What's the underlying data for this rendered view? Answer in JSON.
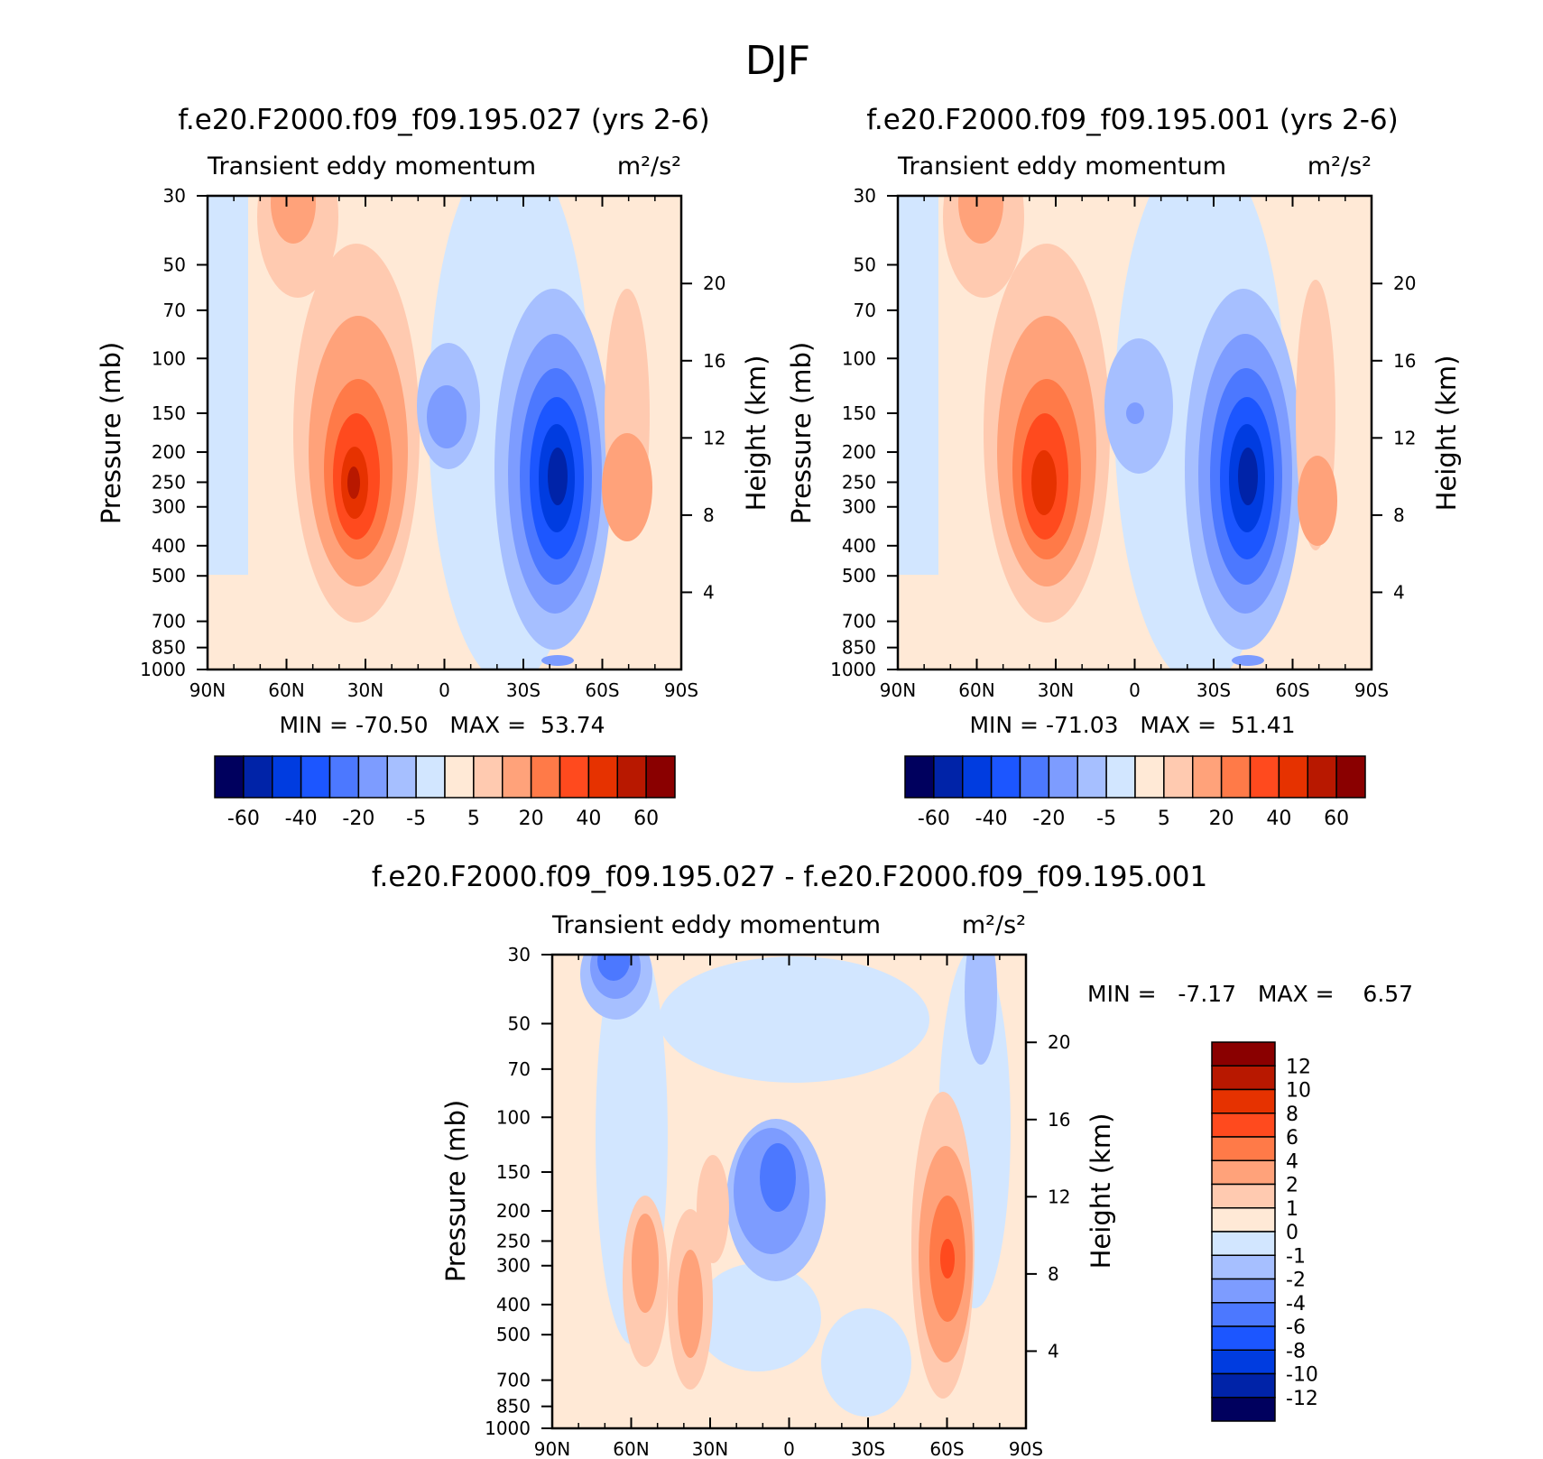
{
  "figure": {
    "title": "DJF"
  },
  "panels": [
    {
      "id": "p1",
      "title": "f.e20.F2000.f09_f09.195.027 (yrs 2-6)",
      "subtitle_left": "Transient eddy momentum",
      "units": "m²/s²",
      "ylabel_left": "Pressure (mb)",
      "ylabel_right": "Height (km)",
      "stats": {
        "min_label": "MIN =",
        "min": "-70.50",
        "max_label": "MAX =",
        "max": "53.74"
      }
    },
    {
      "id": "p2",
      "title": "f.e20.F2000.f09_f09.195.001 (yrs 2-6)",
      "subtitle_left": "Transient eddy momentum",
      "units": "m²/s²",
      "ylabel_left": "Pressure (mb)",
      "ylabel_right": "Height (km)",
      "stats": {
        "min_label": "MIN =",
        "min": "-71.03",
        "max_label": "MAX =",
        "max": "51.41"
      }
    },
    {
      "id": "p3",
      "title": "f.e20.F2000.f09_f09.195.027 - f.e20.F2000.f09_f09.195.001",
      "subtitle_left": "Transient eddy momentum",
      "units": "m²/s²",
      "ylabel_left": "Pressure (mb)",
      "ylabel_right": "Height (km)",
      "stats": {
        "min_label": "MIN =",
        "min": "-7.17",
        "max_label": "MAX =",
        "max": "6.57"
      }
    }
  ],
  "colorbars": {
    "main": {
      "colors": [
        "#00005e",
        "#0023a8",
        "#003ce0",
        "#1c56ff",
        "#4c78ff",
        "#7d9cff",
        "#a6bfff",
        "#d2e6ff",
        "#ffe9d6",
        "#ffcab0",
        "#ffa27a",
        "#ff7a48",
        "#ff4a1e",
        "#e63200",
        "#b81800",
        "#8a0000"
      ],
      "labels": [
        "-60",
        "-40",
        "-20",
        "-5",
        "5",
        "20",
        "40",
        "60"
      ]
    },
    "diff": {
      "colors": [
        "#00005e",
        "#0023a8",
        "#003ce0",
        "#1c56ff",
        "#4c78ff",
        "#7d9cff",
        "#a6bfff",
        "#d2e6ff",
        "#ffe9d6",
        "#ffcab0",
        "#ffa27a",
        "#ff7a48",
        "#ff4a1e",
        "#e63200",
        "#b81800",
        "#8a0000"
      ],
      "labels": [
        "-12",
        "-10",
        "-8",
        "-6",
        "-4",
        "-2",
        "-1",
        "0",
        "1",
        "2",
        "4",
        "6",
        "8",
        "10",
        "12"
      ]
    }
  },
  "chart_data": [
    {
      "type": "heatmap",
      "title": "f.e20.F2000.f09_f09.195.027 (yrs 2-6)",
      "variable": "Transient eddy momentum",
      "units": "m²/s²",
      "x_ticks": [
        "90N",
        "60N",
        "30N",
        "0",
        "30S",
        "60S",
        "90S"
      ],
      "x_values": [
        90,
        60,
        30,
        0,
        -30,
        -60,
        -90
      ],
      "y_left_ticks": [
        30,
        50,
        70,
        100,
        150,
        200,
        250,
        300,
        400,
        500,
        700,
        850,
        1000
      ],
      "y_right_ticks": [
        4,
        8,
        12,
        16,
        20
      ],
      "ylim": [
        30,
        1000
      ],
      "y_scale": "log-pressure",
      "min": -70.5,
      "max": 53.74,
      "features": [
        {
          "lat": 65,
          "p": 35,
          "value": 30
        },
        {
          "lat": 33,
          "p": 260,
          "value": 50
        },
        {
          "lat": 0,
          "p": 150,
          "value": -20
        },
        {
          "lat": -43,
          "p": 250,
          "value": -70
        },
        {
          "lat": -67,
          "p": 280,
          "value": 15
        }
      ]
    },
    {
      "type": "heatmap",
      "title": "f.e20.F2000.f09_f09.195.001 (yrs 2-6)",
      "variable": "Transient eddy momentum",
      "units": "m²/s²",
      "x_ticks": [
        "90N",
        "60N",
        "30N",
        "0",
        "30S",
        "60S",
        "90S"
      ],
      "x_values": [
        90,
        60,
        30,
        0,
        -30,
        -60,
        -90
      ],
      "y_left_ticks": [
        30,
        50,
        70,
        100,
        150,
        200,
        250,
        300,
        400,
        500,
        700,
        850,
        1000
      ],
      "y_right_ticks": [
        4,
        8,
        12,
        16,
        20
      ],
      "ylim": [
        30,
        1000
      ],
      "y_scale": "log-pressure",
      "min": -71.03,
      "max": 51.41,
      "features": [
        {
          "lat": 63,
          "p": 35,
          "value": 30
        },
        {
          "lat": 34,
          "p": 260,
          "value": 48
        },
        {
          "lat": 0,
          "p": 150,
          "value": -15
        },
        {
          "lat": -43,
          "p": 250,
          "value": -70
        },
        {
          "lat": -68,
          "p": 280,
          "value": 12
        }
      ]
    },
    {
      "type": "heatmap",
      "title": "f.e20.F2000.f09_f09.195.027 - f.e20.F2000.f09_f09.195.001",
      "variable": "Transient eddy momentum",
      "units": "m²/s²",
      "x_ticks": [
        "90N",
        "60N",
        "30N",
        "0",
        "30S",
        "60S",
        "90S"
      ],
      "x_values": [
        90,
        60,
        30,
        0,
        -30,
        -60,
        -90
      ],
      "y_left_ticks": [
        30,
        50,
        70,
        100,
        150,
        200,
        250,
        300,
        400,
        500,
        700,
        850,
        1000
      ],
      "y_right_ticks": [
        4,
        8,
        12,
        16,
        20
      ],
      "ylim": [
        30,
        1000
      ],
      "y_scale": "log-pressure",
      "min": -7.17,
      "max": 6.57,
      "features": [
        {
          "lat": 68,
          "p": 32,
          "value": -7
        },
        {
          "lat": 7,
          "p": 190,
          "value": -6
        },
        {
          "lat": -60,
          "p": 270,
          "value": 6
        },
        {
          "lat": 45,
          "p": 280,
          "value": 3
        },
        {
          "lat": 30,
          "p": 350,
          "value": 3
        },
        {
          "lat": 27,
          "p": 160,
          "value": 2
        }
      ]
    }
  ]
}
